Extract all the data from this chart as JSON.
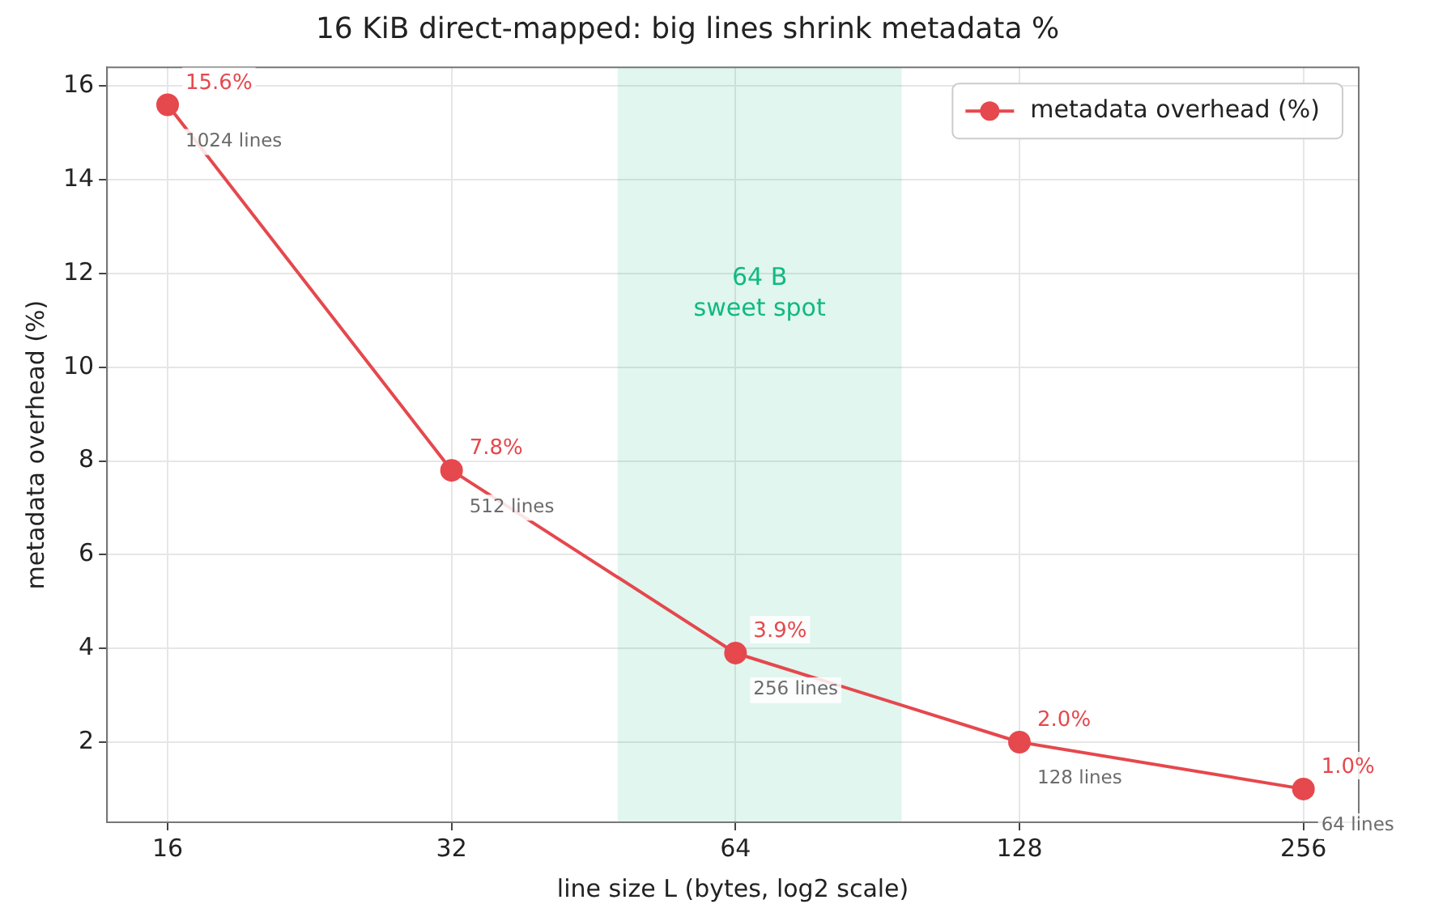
{
  "chart_data": {
    "type": "line",
    "title": "16 KiB direct-mapped: big lines shrink metadata %",
    "xlabel": "line size L (bytes, log2 scale)",
    "ylabel": "metadata overhead (%)",
    "x": [
      16,
      32,
      64,
      128,
      256
    ],
    "series": [
      {
        "name": "metadata overhead (%)",
        "color": "#e5484d",
        "values": [
          15.6,
          7.8,
          3.9,
          2.0,
          1.0
        ],
        "value_labels": [
          "15.6%",
          "7.8%",
          "3.9%",
          "2.0%",
          "1.0%"
        ]
      }
    ],
    "log": "x",
    "xlim": [
      13.8,
      293
    ],
    "xticks": [
      16,
      32,
      64,
      128,
      256
    ],
    "ylim": [
      0.29,
      16.4
    ],
    "yticks": [
      2,
      4,
      6,
      8,
      10,
      12,
      14,
      16
    ],
    "bands": [
      {
        "axis": "x",
        "from": 48,
        "to": 96,
        "label": "64 B\nsweet spot",
        "color": "#10b981"
      }
    ],
    "annotations": [
      {
        "text": "1024 lines",
        "x": 16,
        "y": 15.6
      },
      {
        "text": "512 lines",
        "x": 32,
        "y": 7.8
      },
      {
        "text": "256 lines",
        "x": 64,
        "y": 3.9
      },
      {
        "text": "128 lines",
        "x": 128,
        "y": 2.0
      },
      {
        "text": "64 lines",
        "x": 256,
        "y": 1.0
      }
    ],
    "grid": true,
    "legend": "top right",
    "marker": "circle",
    "line_style": "solid"
  }
}
